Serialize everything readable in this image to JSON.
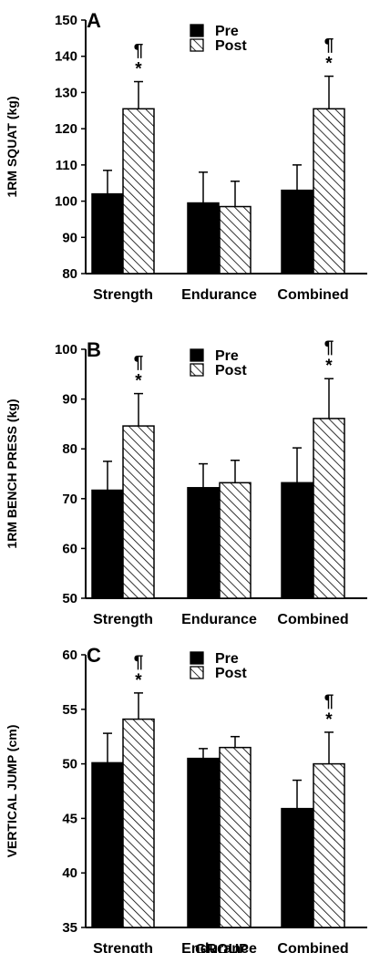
{
  "chart_data": [
    {
      "type": "bar",
      "panel": "A",
      "ylabel": "1RM SQUAT (kg)",
      "ylim": [
        80,
        150
      ],
      "yticks": [
        80,
        90,
        100,
        110,
        120,
        130,
        140,
        150
      ],
      "categories": [
        "Strength",
        "Endurance",
        "Combined"
      ],
      "series": [
        {
          "name": "Pre",
          "values": [
            102,
            99.5,
            103
          ],
          "errors": [
            6.5,
            8.5,
            7
          ]
        },
        {
          "name": "Post",
          "values": [
            125.5,
            98.5,
            125.5
          ],
          "errors": [
            7.5,
            7,
            9
          ]
        }
      ],
      "annotations": [
        {
          "category": "Strength",
          "series": "Post",
          "marks": [
            "¶",
            "*"
          ]
        },
        {
          "category": "Combined",
          "series": "Post",
          "marks": [
            "¶",
            "*"
          ]
        }
      ],
      "legend": "top-center",
      "xlabel": ""
    },
    {
      "type": "bar",
      "panel": "B",
      "ylabel": "1RM BENCH PRESS (kg)",
      "ylim": [
        50,
        100
      ],
      "yticks": [
        50,
        60,
        70,
        80,
        90,
        100
      ],
      "categories": [
        "Strength",
        "Endurance",
        "Combined"
      ],
      "series": [
        {
          "name": "Pre",
          "values": [
            71.7,
            72.2,
            73.2
          ],
          "errors": [
            5.8,
            4.8,
            7
          ]
        },
        {
          "name": "Post",
          "values": [
            84.6,
            73.2,
            86.1
          ],
          "errors": [
            6.5,
            4.5,
            8
          ]
        }
      ],
      "annotations": [
        {
          "category": "Strength",
          "series": "Post",
          "marks": [
            "¶",
            "*"
          ]
        },
        {
          "category": "Combined",
          "series": "Post",
          "marks": [
            "¶",
            "*"
          ]
        }
      ],
      "legend": "top-center",
      "xlabel": ""
    },
    {
      "type": "bar",
      "panel": "C",
      "ylabel": "VERTICAL JUMP (cm)",
      "ylim": [
        35,
        60
      ],
      "yticks": [
        35,
        40,
        45,
        50,
        55,
        60
      ],
      "categories": [
        "Strength",
        "Endurance",
        "Combined"
      ],
      "series": [
        {
          "name": "Pre",
          "values": [
            50.1,
            50.5,
            45.9
          ],
          "errors": [
            2.7,
            0.9,
            2.6
          ]
        },
        {
          "name": "Post",
          "values": [
            54.1,
            51.5,
            50
          ],
          "errors": [
            2.4,
            1,
            2.9
          ]
        }
      ],
      "annotations": [
        {
          "category": "Strength",
          "series": "Post",
          "marks": [
            "¶",
            "*"
          ]
        },
        {
          "category": "Combined",
          "series": "Post",
          "marks": [
            "¶",
            "*"
          ]
        }
      ],
      "legend": "top-center",
      "xlabel": "GROUP"
    }
  ],
  "colors": {
    "pre_fill": "#000000",
    "post_fill": "#ffffff",
    "post_hatch": "#000000",
    "axis": "#000000"
  }
}
